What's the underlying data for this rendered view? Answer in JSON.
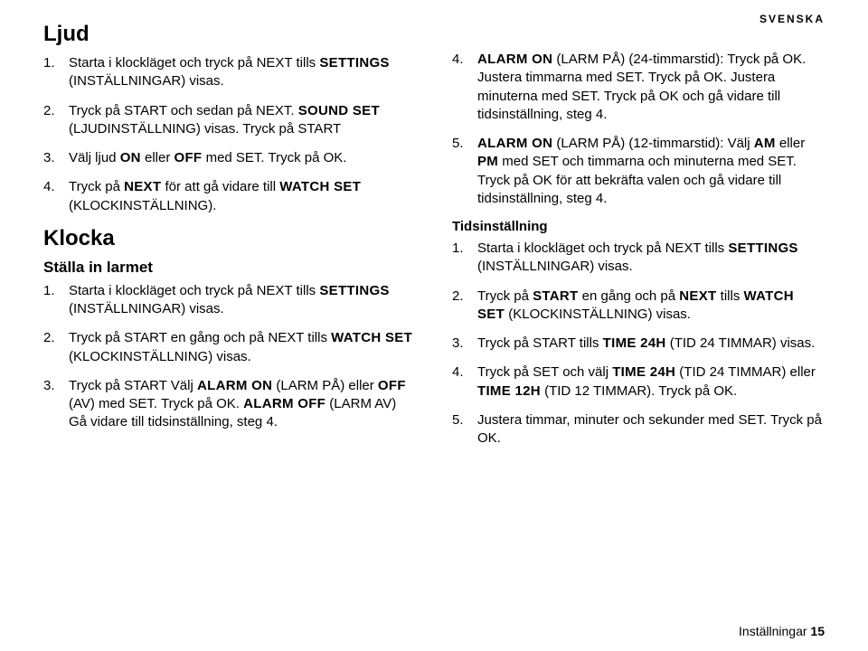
{
  "lang_label": "SVENSKA",
  "left": {
    "ljud_heading": "Ljud",
    "ljud_steps": [
      "Starta i klockläget och tryck på NEXT tills <kw>SETTINGS</kw> (INSTÄLLNINGAR) visas.",
      "Tryck på START och sedan på NEXT. <kw>SOUND SET</kw> (LJUDINSTÄLLNING) visas. Tryck på START",
      "Välj ljud <kw>ON</kw> eller <kw>OFF</kw> med SET. Tryck på OK.",
      "Tryck på <kw>NEXT</kw> för att gå vidare till <kw>WATCH SET</kw> (KLOCKINSTÄLLNING)."
    ],
    "klocka_heading": "Klocka",
    "klocka_sub": "Ställa in larmet",
    "klocka_steps": [
      "Starta i klockläget och tryck på NEXT tills <kw>SETTINGS</kw> (INSTÄLLNINGAR) visas.",
      "Tryck på START en gång och på NEXT tills <kw>WATCH SET</kw> (KLOCKINSTÄLLNING) visas.",
      "Tryck på START Välj <kw>ALARM ON</kw> (LARM PÅ) eller <kw>OFF</kw> (AV) med SET. Tryck på OK. <kw>ALARM OFF</kw> (LARM AV) Gå vidare till tidsinställning, steg 4."
    ]
  },
  "right": {
    "cont_start": 4,
    "cont_steps": [
      "<kw>ALARM ON</kw> (LARM PÅ) (24-timmarstid): Tryck på OK. Justera timmarna med SET. Tryck på OK. Justera minuterna med SET. Tryck på OK och gå vidare till tidsinställning, steg 4.",
      "<kw>ALARM ON</kw> (LARM PÅ) (12-timmarstid): Välj <kw>AM</kw> eller <kw>PM</kw> med SET och timmarna och minuterna med SET. Tryck på OK för att bekräfta valen och gå vidare till tidsinställning, steg 4."
    ],
    "tids_heading": "Tidsinställning",
    "tids_steps": [
      "Starta i klockläget och tryck på NEXT tills <kw>SETTINGS</kw> (INSTÄLLNINGAR) visas.",
      "Tryck på <kw>START</kw> en gång och på <kw>NEXT</kw> tills <kw>WATCH SET</kw> (KLOCKINSTÄLLNING) visas.",
      "Tryck på START tills <kw>TIME 24H</kw> (TID 24 TIMMAR) visas.",
      "Tryck på SET och välj <kw>TIME 24H</kw> (TID 24 TIMMAR) eller <kw>TIME 12H</kw> (TID 12 TIMMAR). Tryck på OK.",
      "Justera timmar, minuter och sekunder med SET. Tryck på OK."
    ]
  },
  "footer_label": "Inställningar",
  "footer_page": "15"
}
